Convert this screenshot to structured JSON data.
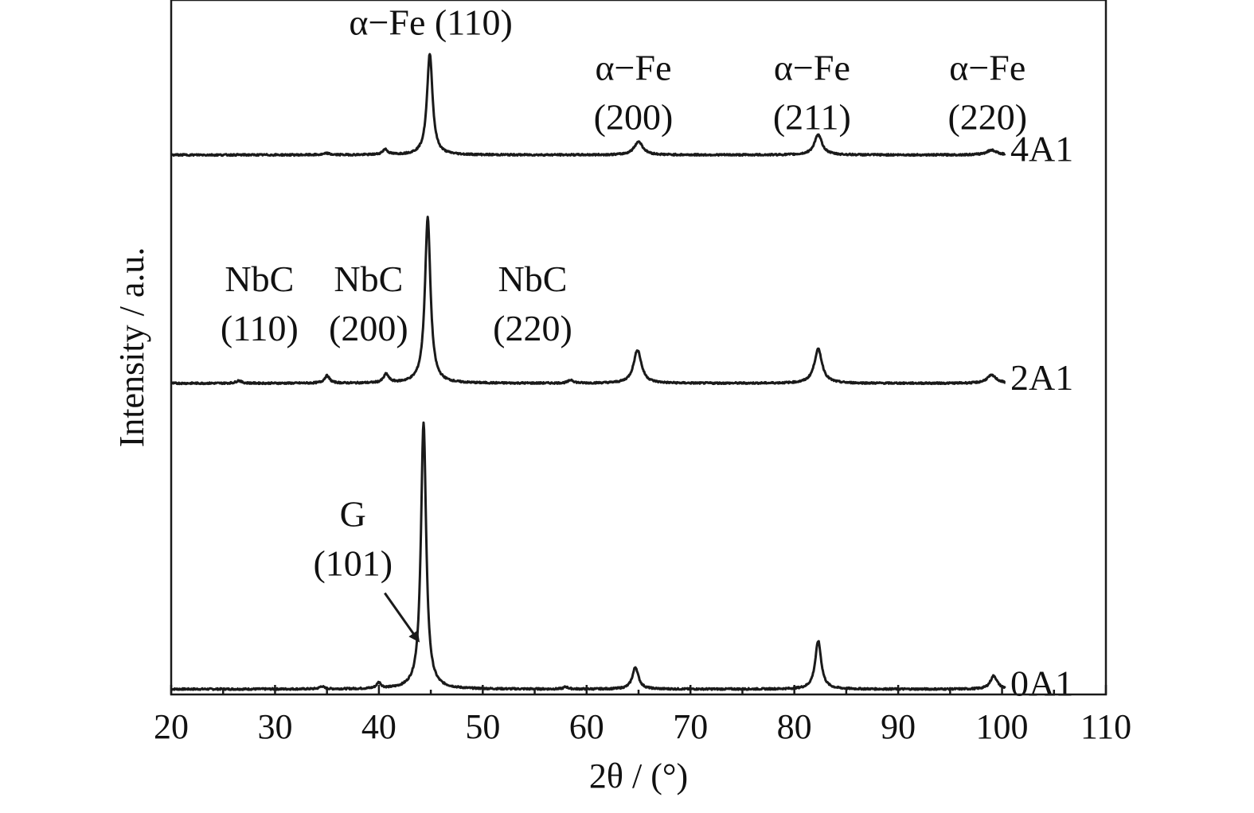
{
  "chart_data": {
    "type": "line",
    "xlabel": "2θ / (°)",
    "ylabel": "Intensity / a.u.",
    "xlim": [
      20,
      110
    ],
    "xticks": [
      20,
      30,
      40,
      50,
      60,
      70,
      80,
      90,
      100,
      110
    ],
    "grid": false,
    "legend": "none",
    "series": [
      {
        "name": "0A1",
        "baseline": 0,
        "peaks": [
          {
            "x": 34.5,
            "h": 0.01,
            "w": 0.25
          },
          {
            "x": 40.0,
            "h": 0.022,
            "w": 0.25
          },
          {
            "x": 44.3,
            "h": 1.0,
            "w": 0.3
          },
          {
            "x": 58.0,
            "h": 0.008,
            "w": 0.25
          },
          {
            "x": 64.7,
            "h": 0.082,
            "w": 0.35
          },
          {
            "x": 82.3,
            "h": 0.18,
            "w": 0.35
          },
          {
            "x": 99.2,
            "h": 0.05,
            "w": 0.4
          }
        ]
      },
      {
        "name": "2A1",
        "baseline": 1.145,
        "peaks": [
          {
            "x": 26.5,
            "h": 0.01,
            "w": 0.3
          },
          {
            "x": 35.0,
            "h": 0.028,
            "w": 0.3
          },
          {
            "x": 40.7,
            "h": 0.032,
            "w": 0.3
          },
          {
            "x": 44.7,
            "h": 0.62,
            "w": 0.32
          },
          {
            "x": 58.5,
            "h": 0.012,
            "w": 0.3
          },
          {
            "x": 64.9,
            "h": 0.125,
            "w": 0.45
          },
          {
            "x": 82.3,
            "h": 0.128,
            "w": 0.45
          },
          {
            "x": 99.0,
            "h": 0.03,
            "w": 0.55
          }
        ]
      },
      {
        "name": "4A1",
        "baseline": 2.0,
        "peaks": [
          {
            "x": 35.0,
            "h": 0.006,
            "w": 0.3
          },
          {
            "x": 40.6,
            "h": 0.02,
            "w": 0.3
          },
          {
            "x": 44.9,
            "h": 0.38,
            "w": 0.32
          },
          {
            "x": 65.0,
            "h": 0.05,
            "w": 0.5
          },
          {
            "x": 82.3,
            "h": 0.075,
            "w": 0.45
          },
          {
            "x": 99.0,
            "h": 0.018,
            "w": 0.6
          }
        ]
      }
    ],
    "annotations": [
      {
        "lines": [
          "α−Fe (110)"
        ],
        "x": 45.0,
        "y": 2.45
      },
      {
        "lines": [
          "α−Fe",
          "(200)"
        ],
        "x": 64.5,
        "y": 2.28
      },
      {
        "lines": [
          "α−Fe",
          "(211)"
        ],
        "x": 81.7,
        "y": 2.28
      },
      {
        "lines": [
          "α−Fe",
          "(220)"
        ],
        "x": 98.6,
        "y": 2.28
      },
      {
        "lines": [
          "NbC",
          "(110)"
        ],
        "x": 28.5,
        "y": 1.49
      },
      {
        "lines": [
          "NbC",
          "(200)"
        ],
        "x": 39.0,
        "y": 1.49
      },
      {
        "lines": [
          "NbC",
          "(220)"
        ],
        "x": 54.8,
        "y": 1.49
      },
      {
        "lines": [
          "G",
          "(101)"
        ],
        "x": 37.5,
        "y": 0.61,
        "arrow_to": [
          44.1,
          0.17
        ]
      }
    ],
    "ylim": [
      -0.02,
      2.58
    ]
  }
}
